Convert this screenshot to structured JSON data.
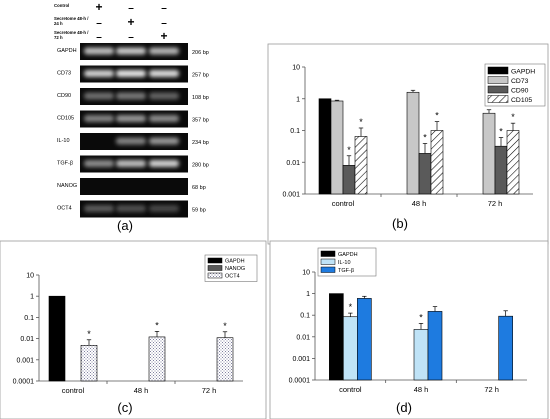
{
  "gel": {
    "conditions": [
      {
        "label": "Control",
        "marks": [
          "+",
          "–",
          "–"
        ]
      },
      {
        "label": "Secretome 48-h / 24 h",
        "marks": [
          "–",
          "+",
          "–"
        ]
      },
      {
        "label": "Secretome 48-h / 72 h",
        "marks": [
          "–",
          "–",
          "+"
        ]
      }
    ],
    "bands": [
      {
        "gene": "GAPDH",
        "size": "206 bp",
        "intensity": [
          0.75,
          0.8,
          0.7
        ]
      },
      {
        "gene": "CD73",
        "size": "257 bp",
        "intensity": [
          0.85,
          0.95,
          0.9
        ]
      },
      {
        "gene": "CD90",
        "size": "108 bp",
        "intensity": [
          0.35,
          0.4,
          0.3
        ]
      },
      {
        "gene": "CD105",
        "size": "357 bp",
        "intensity": [
          0.45,
          0.55,
          0.5
        ]
      },
      {
        "gene": "IL-10",
        "size": "234 bp",
        "intensity": [
          0.0,
          0.45,
          0.55
        ]
      },
      {
        "gene": "TGF-β",
        "size": "280 bp",
        "intensity": [
          0.5,
          0.75,
          0.85
        ]
      },
      {
        "gene": "NANOG",
        "size": "68  bp",
        "intensity": [
          0.0,
          0.0,
          0.0
        ]
      },
      {
        "gene": "OCT4",
        "size": "59  bp",
        "intensity": [
          0.25,
          0.2,
          0.15
        ]
      }
    ],
    "panel_label": "(a)"
  },
  "chart_data": [
    {
      "type": "bar",
      "panel_label": "(b)",
      "scale": "log",
      "ylim": [
        0.001,
        10
      ],
      "yticks": [
        "10",
        "1",
        "0.1",
        "0.01",
        "0.001"
      ],
      "categories": [
        "control",
        "48 h",
        "72 h"
      ],
      "legend_position": "top-right",
      "series": [
        {
          "name": "GAPDH",
          "pattern": "black",
          "values": [
            1,
            null,
            null
          ],
          "errors": [
            0,
            null,
            null
          ],
          "sig": [
            false,
            false,
            false
          ]
        },
        {
          "name": "CD73",
          "pattern": "lightgray",
          "values": [
            0.85,
            1.6,
            0.35
          ],
          "errors": [
            0.05,
            0.25,
            0.1
          ],
          "sig": [
            false,
            false,
            false
          ]
        },
        {
          "name": "CD90",
          "pattern": "darkgray",
          "values": [
            0.008,
            0.019,
            0.032
          ],
          "errors": [
            0.008,
            0.02,
            0.028
          ],
          "sig": [
            true,
            true,
            true
          ]
        },
        {
          "name": "CD105",
          "pattern": "hatch",
          "values": [
            0.065,
            0.1,
            0.1
          ],
          "errors": [
            0.055,
            0.09,
            0.07
          ],
          "sig": [
            true,
            true,
            true
          ]
        }
      ]
    },
    {
      "type": "bar",
      "panel_label": "(c)",
      "scale": "log",
      "ylim": [
        0.0001,
        10
      ],
      "yticks": [
        "10",
        "1",
        "0.1",
        "0.01",
        "0.001",
        "0.0001"
      ],
      "categories": [
        "control",
        "48 h",
        "72 h"
      ],
      "legend_position": "top-right",
      "series": [
        {
          "name": "GAPDH",
          "pattern": "black",
          "values": [
            1,
            null,
            null
          ],
          "errors": [
            0,
            null,
            null
          ],
          "sig": [
            false,
            false,
            false
          ]
        },
        {
          "name": "NANOG",
          "pattern": "darkgray",
          "values": [
            null,
            null,
            null
          ],
          "errors": [
            null,
            null,
            null
          ],
          "sig": [
            false,
            false,
            false
          ]
        },
        {
          "name": "OCT4",
          "pattern": "dots",
          "values": [
            0.0048,
            0.012,
            0.011
          ],
          "errors": [
            0.004,
            0.01,
            0.01
          ],
          "sig": [
            true,
            true,
            true
          ]
        }
      ]
    },
    {
      "type": "bar",
      "panel_label": "(d)",
      "scale": "log",
      "ylim": [
        0.0001,
        10
      ],
      "yticks": [
        "10",
        "1",
        "0.1",
        "0.01",
        "0.001",
        "0.0001"
      ],
      "categories": [
        "control",
        "48 h",
        "72 h"
      ],
      "legend_position": "top-left",
      "series": [
        {
          "name": "GAPDH",
          "pattern": "black",
          "values": [
            1,
            null,
            null
          ],
          "errors": [
            0,
            null,
            null
          ],
          "sig": [
            false,
            false,
            false
          ]
        },
        {
          "name": "IL-10",
          "pattern": "lightblue",
          "values": [
            0.085,
            0.022,
            null
          ],
          "errors": [
            0.04,
            0.02,
            null
          ],
          "sig": [
            true,
            true,
            false
          ]
        },
        {
          "name": "TGF-β",
          "pattern": "blue",
          "values": [
            0.6,
            0.15,
            0.09
          ],
          "errors": [
            0.15,
            0.1,
            0.07
          ],
          "sig": [
            false,
            false,
            false
          ]
        }
      ]
    }
  ],
  "colors": {
    "black": "#000000",
    "lightgray": "#c8c8c8",
    "darkgray": "#5a5a5a",
    "lightblue": "#bfe3f7",
    "blue": "#1e7be0",
    "axis": "#555555"
  }
}
